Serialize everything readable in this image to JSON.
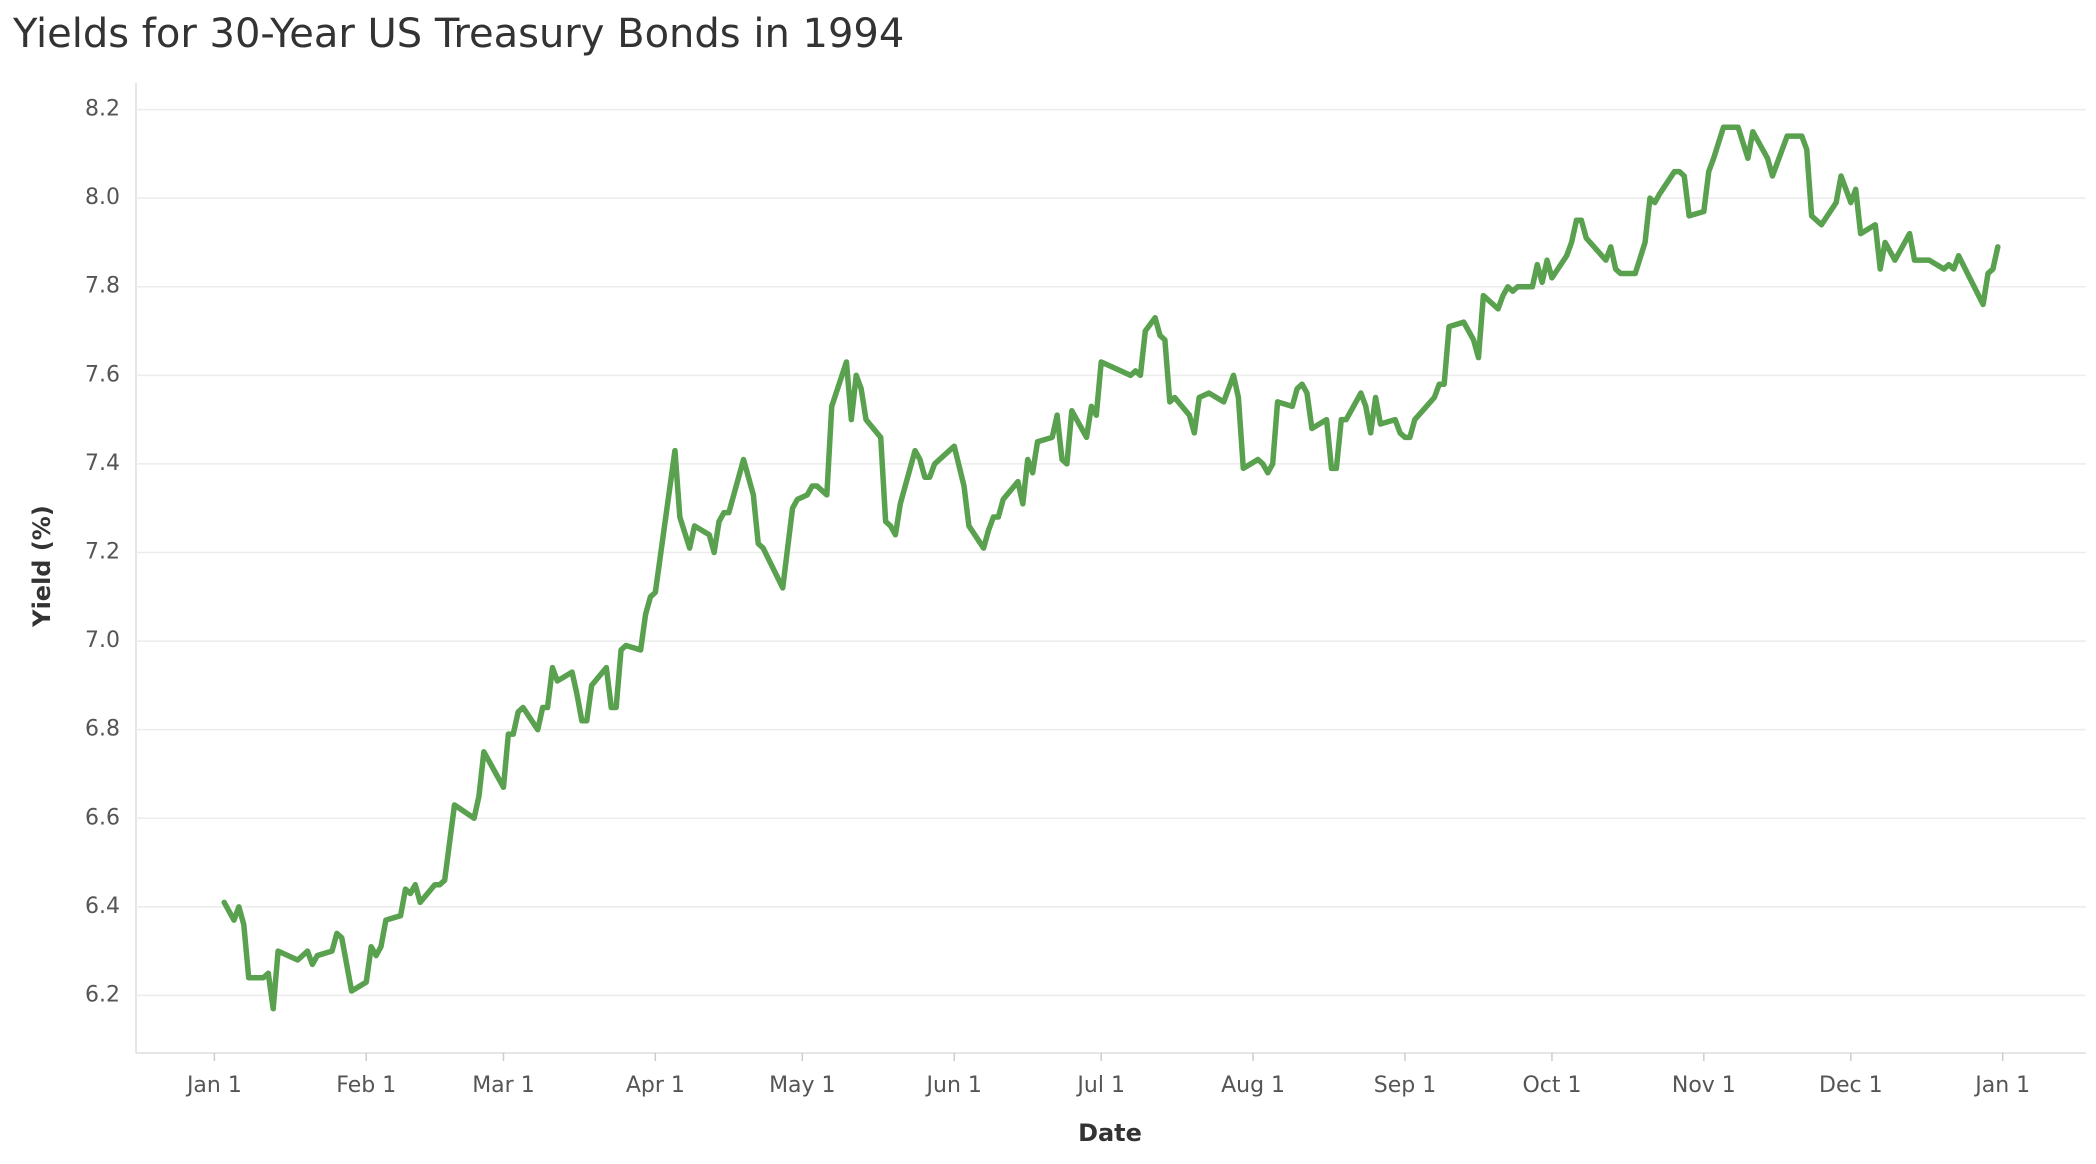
{
  "chart_data": {
    "type": "line",
    "title": "Yields for 30-Year US Treasury Bonds in 1994",
    "x_label": "Date",
    "y_label": "Yield (%)",
    "color": "#59a14f",
    "grid": true,
    "x": [
      3,
      5,
      6,
      7,
      8,
      11,
      12,
      13,
      14,
      18,
      20,
      21,
      22,
      25,
      26,
      27,
      29,
      32,
      33,
      34,
      35,
      36,
      39,
      40,
      41,
      42,
      43,
      46,
      47,
      48,
      50,
      54,
      55,
      56,
      60,
      61,
      62,
      63,
      64,
      67,
      68,
      69,
      70,
      71,
      74,
      75,
      76,
      77,
      78,
      81,
      82,
      83,
      84,
      85,
      88,
      89,
      90,
      91,
      95,
      96,
      98,
      99,
      102,
      103,
      104,
      105,
      106,
      109,
      111,
      112,
      113,
      117,
      119,
      120,
      122,
      123,
      124,
      126,
      127,
      130,
      131,
      132,
      133,
      134,
      137,
      138,
      139,
      140,
      141,
      144,
      145,
      146,
      147,
      148,
      152,
      154,
      155,
      158,
      159,
      160,
      161,
      162,
      165,
      166,
      167,
      168,
      169,
      172,
      173,
      174,
      175,
      176,
      179,
      180,
      181,
      182,
      186,
      188,
      189,
      190,
      191,
      193,
      194,
      195,
      196,
      197,
      200,
      201,
      202,
      204,
      207,
      209,
      210,
      211,
      214,
      215,
      216,
      217,
      218,
      221,
      222,
      223,
      224,
      225,
      228,
      229,
      230,
      231,
      232,
      235,
      236,
      237,
      238,
      239,
      242,
      243,
      244,
      245,
      246,
      250,
      251,
      252,
      253,
      256,
      258,
      259,
      260,
      263,
      264,
      265,
      266,
      267,
      270,
      271,
      272,
      273,
      274,
      277,
      278,
      279,
      280,
      281,
      285,
      286,
      287,
      288,
      291,
      293,
      294,
      295,
      296,
      299,
      300,
      301,
      302,
      305,
      306,
      307,
      309,
      312,
      314,
      315,
      318,
      319,
      322,
      325,
      326,
      327,
      329,
      332,
      333,
      335,
      336,
      337,
      340,
      341,
      342,
      344,
      347,
      348,
      351,
      354,
      355,
      356,
      357,
      362,
      363,
      364,
      365
    ],
    "values": [
      6.41,
      6.37,
      6.4,
      6.36,
      6.24,
      6.24,
      6.25,
      6.17,
      6.3,
      6.28,
      6.3,
      6.27,
      6.29,
      6.3,
      6.34,
      6.33,
      6.21,
      6.23,
      6.31,
      6.29,
      6.31,
      6.37,
      6.38,
      6.44,
      6.43,
      6.45,
      6.41,
      6.45,
      6.45,
      6.46,
      6.63,
      6.6,
      6.65,
      6.75,
      6.67,
      6.79,
      6.79,
      6.84,
      6.85,
      6.8,
      6.85,
      6.85,
      6.94,
      6.91,
      6.93,
      6.88,
      6.82,
      6.82,
      6.9,
      6.94,
      6.85,
      6.85,
      6.98,
      6.99,
      6.98,
      7.06,
      7.1,
      7.11,
      7.43,
      7.28,
      7.21,
      7.26,
      7.24,
      7.2,
      7.27,
      7.29,
      7.29,
      7.41,
      7.33,
      7.22,
      7.21,
      7.12,
      7.3,
      7.32,
      7.33,
      7.35,
      7.35,
      7.33,
      7.53,
      7.63,
      7.5,
      7.6,
      7.57,
      7.5,
      7.46,
      7.27,
      7.26,
      7.24,
      7.31,
      7.43,
      7.41,
      7.37,
      7.37,
      7.4,
      7.44,
      7.35,
      7.26,
      7.21,
      7.25,
      7.28,
      7.28,
      7.32,
      7.36,
      7.31,
      7.41,
      7.38,
      7.45,
      7.46,
      7.51,
      7.41,
      7.4,
      7.52,
      7.46,
      7.53,
      7.51,
      7.63,
      7.61,
      7.6,
      7.61,
      7.6,
      7.7,
      7.73,
      7.69,
      7.68,
      7.54,
      7.55,
      7.51,
      7.47,
      7.55,
      7.56,
      7.54,
      7.6,
      7.55,
      7.39,
      7.41,
      7.4,
      7.38,
      7.4,
      7.54,
      7.53,
      7.57,
      7.58,
      7.56,
      7.48,
      7.5,
      7.39,
      7.39,
      7.5,
      7.5,
      7.56,
      7.53,
      7.47,
      7.55,
      7.49,
      7.5,
      7.47,
      7.46,
      7.46,
      7.5,
      7.55,
      7.58,
      7.58,
      7.71,
      7.72,
      7.68,
      7.64,
      7.78,
      7.75,
      7.78,
      7.8,
      7.79,
      7.8,
      7.8,
      7.85,
      7.81,
      7.86,
      7.82,
      7.87,
      7.9,
      7.95,
      7.95,
      7.91,
      7.86,
      7.89,
      7.84,
      7.83,
      7.83,
      7.9,
      8.0,
      7.99,
      8.01,
      8.06,
      8.06,
      8.05,
      7.96,
      7.97,
      8.06,
      8.09,
      8.16,
      8.16,
      8.09,
      8.15,
      8.09,
      8.05,
      8.14,
      8.14,
      8.11,
      7.96,
      7.94,
      7.99,
      8.05,
      7.99,
      8.02,
      7.92,
      7.94,
      7.84,
      7.9,
      7.86,
      7.92,
      7.86,
      7.86,
      7.84,
      7.85,
      7.84,
      7.87,
      7.76,
      7.83,
      7.84,
      7.89
    ],
    "xlim": [
      -15,
      383
    ],
    "xticks": [
      {
        "value": 1,
        "label": "Jan 1"
      },
      {
        "value": 32,
        "label": "Feb 1"
      },
      {
        "value": 60,
        "label": "Mar 1"
      },
      {
        "value": 91,
        "label": "Apr 1"
      },
      {
        "value": 121,
        "label": "May 1"
      },
      {
        "value": 152,
        "label": "Jun 1"
      },
      {
        "value": 182,
        "label": "Jul 1"
      },
      {
        "value": 213,
        "label": "Aug 1"
      },
      {
        "value": 244,
        "label": "Sep 1"
      },
      {
        "value": 274,
        "label": "Oct 1"
      },
      {
        "value": 305,
        "label": "Nov 1"
      },
      {
        "value": 335,
        "label": "Dec 1"
      },
      {
        "value": 366,
        "label": "Jan 1"
      }
    ],
    "ylim": [
      6.07,
      8.26
    ],
    "yticks": [
      6.2,
      6.4,
      6.6,
      6.8,
      {
        "value": 7,
        "label": "7.0"
      },
      7.2,
      7.4,
      7.6,
      7.8,
      {
        "value": 8,
        "label": "8.0"
      },
      8.2
    ]
  }
}
